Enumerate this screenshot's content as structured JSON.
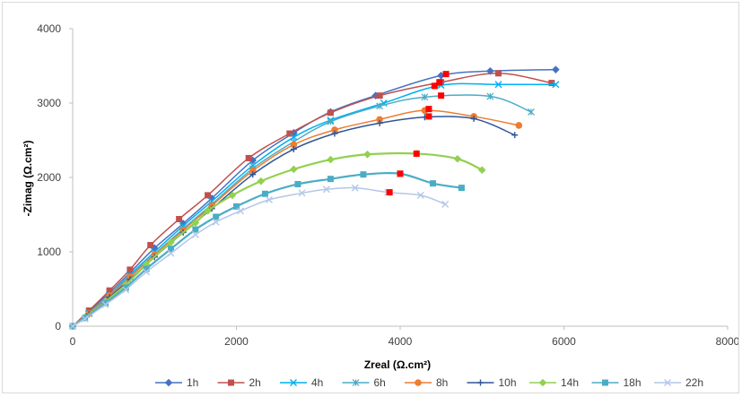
{
  "chart_data": {
    "type": "scatter",
    "title": "",
    "xlabel": "Zreal (Ω.cm²)",
    "ylabel": "-Zimag (Ω.cm²)",
    "xlim": [
      0,
      8000
    ],
    "ylim": [
      0,
      4000
    ],
    "x_ticks": [
      "0",
      "2000",
      "4000",
      "6000",
      "8000"
    ],
    "y_ticks": [
      "0",
      "1000",
      "2000",
      "3000",
      "4000"
    ],
    "grid": false,
    "legend_position": "bottom",
    "series": [
      {
        "name": "1h",
        "color": "#4472c4",
        "marker": "diamond",
        "x": [
          0,
          200,
          450,
          700,
          1000,
          1350,
          1700,
          2200,
          2700,
          3150,
          3700,
          4500,
          5100,
          5900
        ],
        "y": [
          0,
          200,
          450,
          720,
          1050,
          1380,
          1720,
          2230,
          2600,
          2880,
          3100,
          3370,
          3430,
          3450
        ]
      },
      {
        "name": "2h",
        "color": "#c0504d",
        "marker": "square",
        "x": [
          0,
          200,
          450,
          700,
          950,
          1300,
          1650,
          2150,
          2650,
          3150,
          3750,
          4500,
          5200,
          5850
        ],
        "y": [
          0,
          210,
          480,
          760,
          1090,
          1440,
          1760,
          2260,
          2590,
          2870,
          3100,
          3280,
          3400,
          3270
        ]
      },
      {
        "name": "4h",
        "color": "#00b0f0",
        "marker": "x",
        "x": [
          0,
          200,
          450,
          700,
          1000,
          1350,
          1700,
          2200,
          2700,
          3150,
          3800,
          4500,
          5200,
          5900
        ],
        "y": [
          0,
          180,
          420,
          690,
          1000,
          1350,
          1680,
          2160,
          2540,
          2770,
          3000,
          3240,
          3250,
          3250
        ]
      },
      {
        "name": "6h",
        "color": "#4bacc6",
        "marker": "star",
        "x": [
          0,
          200,
          450,
          700,
          1000,
          1350,
          1700,
          2200,
          2700,
          3150,
          3750,
          4300,
          5100,
          5600
        ],
        "y": [
          0,
          170,
          410,
          670,
          970,
          1310,
          1640,
          2120,
          2480,
          2750,
          2960,
          3080,
          3090,
          2880
        ]
      },
      {
        "name": "8h",
        "color": "#ed7d31",
        "marker": "circle",
        "x": [
          0,
          200,
          450,
          700,
          1000,
          1350,
          1700,
          2200,
          2700,
          3200,
          3750,
          4300,
          4900,
          5450
        ],
        "y": [
          0,
          170,
          410,
          660,
          960,
          1290,
          1620,
          2090,
          2440,
          2640,
          2780,
          2900,
          2820,
          2700
        ]
      },
      {
        "name": "10h",
        "color": "#2f5597",
        "marker": "plus",
        "x": [
          0,
          200,
          450,
          700,
          1000,
          1350,
          1700,
          2200,
          2700,
          3200,
          3750,
          4300,
          4900,
          5400
        ],
        "y": [
          0,
          160,
          390,
          630,
          930,
          1260,
          1580,
          2040,
          2380,
          2590,
          2730,
          2810,
          2790,
          2570
        ]
      },
      {
        "name": "14h",
        "color": "#92d050",
        "marker": "diamond",
        "x": [
          0,
          150,
          400,
          650,
          900,
          1200,
          1500,
          1650,
          1950,
          2300,
          2700,
          3150,
          3600,
          4200,
          4700,
          5000
        ],
        "y": [
          0,
          120,
          330,
          560,
          830,
          1130,
          1390,
          1550,
          1760,
          1950,
          2110,
          2240,
          2310,
          2320,
          2250,
          2100
        ]
      },
      {
        "name": "18h",
        "color": "#4bacc6",
        "marker": "square",
        "x": [
          0,
          150,
          400,
          650,
          900,
          1200,
          1500,
          1750,
          2000,
          2350,
          2750,
          3150,
          3550,
          4000,
          4400,
          4750
        ],
        "y": [
          0,
          110,
          310,
          520,
          770,
          1040,
          1300,
          1470,
          1610,
          1780,
          1910,
          1980,
          2040,
          2050,
          1920,
          1860
        ]
      },
      {
        "name": "22h",
        "color": "#b4c7e7",
        "marker": "x",
        "x": [
          0,
          150,
          400,
          650,
          900,
          1200,
          1500,
          1750,
          2050,
          2400,
          2800,
          3100,
          3450,
          3850,
          4250,
          4550
        ],
        "y": [
          0,
          100,
          290,
          490,
          730,
          980,
          1230,
          1400,
          1550,
          1700,
          1790,
          1840,
          1860,
          1800,
          1760,
          1640
        ]
      }
    ],
    "highlight_points": [
      {
        "x": 4560,
        "y": 3390
      },
      {
        "x": 4480,
        "y": 3280
      },
      {
        "x": 4420,
        "y": 3230
      },
      {
        "x": 4500,
        "y": 3100
      },
      {
        "x": 4350,
        "y": 2920
      },
      {
        "x": 4350,
        "y": 2820
      },
      {
        "x": 4200,
        "y": 2320
      },
      {
        "x": 4000,
        "y": 2050
      },
      {
        "x": 3870,
        "y": 1800
      }
    ],
    "highlight_color": "#ff0000"
  }
}
